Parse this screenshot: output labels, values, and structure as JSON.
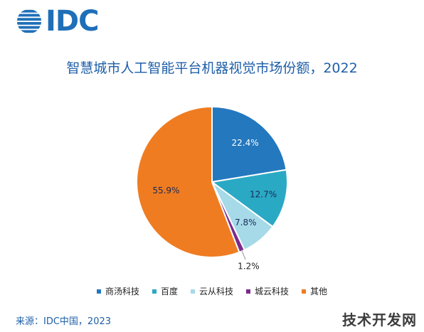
{
  "logo": {
    "text": "IDC"
  },
  "source": "来源：IDC中国，2023",
  "watermark": "技术开发网",
  "colors": {
    "title": "#1f5fa8",
    "logo": "#1f6fb8"
  },
  "chart_data": {
    "type": "pie",
    "title": "智慧城市人工智能平台机器视觉市场份额，2022",
    "categories": [
      "商汤科技",
      "百度",
      "云从科技",
      "城云科技",
      "其他"
    ],
    "values": [
      22.4,
      12.7,
      7.8,
      1.2,
      55.9
    ],
    "labels": [
      "22.4%",
      "12.7%",
      "7.8%",
      "1.2%",
      "55.9%"
    ],
    "colors": [
      "#2478be",
      "#2aa9c4",
      "#a6dae8",
      "#7b2b8b",
      "#ef7c21"
    ],
    "start_angle_deg": 0,
    "direction": "clockwise",
    "legend_position": "bottom"
  }
}
